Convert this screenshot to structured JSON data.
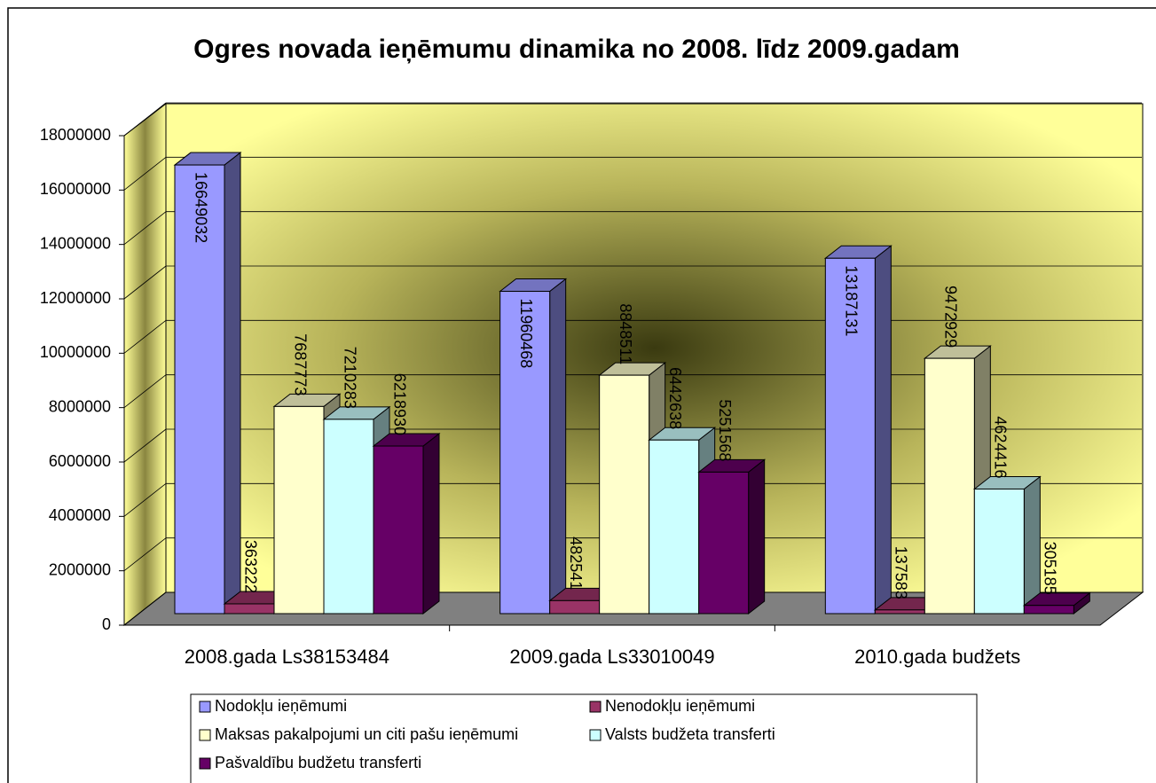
{
  "chart_data": {
    "type": "bar3d",
    "title": "Ogres novada ieņēmumu dinamika no 2008. līdz 2009.gadam",
    "categories": [
      "2008.gada Ls38153484",
      "2009.gada Ls33010049",
      "2010.gada budžets"
    ],
    "series": [
      {
        "name": "Nodokļu ieņēmumi",
        "color": "#9999ff",
        "values": [
          16649032,
          11960468,
          13187131
        ]
      },
      {
        "name": "Nenodokļu ieņēmumi",
        "color": "#993366",
        "values": [
          363222,
          482541,
          137583
        ]
      },
      {
        "name": "Maksas pakalpojumi un citi pašu ieņēmumi",
        "color": "#ffffcc",
        "values": [
          7687773,
          8848511,
          9472929
        ]
      },
      {
        "name": "Valsts budžeta transferti",
        "color": "#ccffff",
        "values": [
          7210283,
          6442638,
          4624416
        ]
      },
      {
        "name": "Pašvaldību budžetu transferti",
        "color": "#660066",
        "values": [
          6218930,
          5251568,
          305185
        ]
      }
    ],
    "ylim": [
      0,
      18000000
    ],
    "yticks": [
      0,
      2000000,
      4000000,
      6000000,
      8000000,
      10000000,
      12000000,
      14000000,
      16000000,
      18000000
    ],
    "grid": true,
    "legend": "bottom",
    "data_labels": true
  }
}
